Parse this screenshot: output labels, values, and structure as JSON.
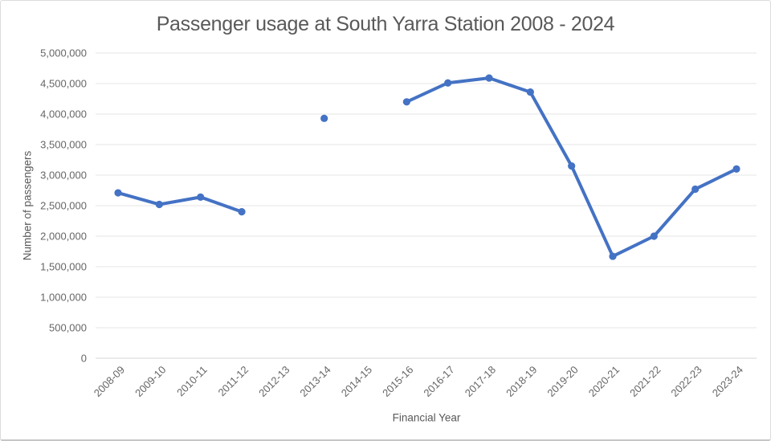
{
  "chart_data": {
    "type": "line",
    "title": "Passenger usage at South Yarra Station 2008 - 2024",
    "xlabel": "Financial Year",
    "ylabel": "Number of passengers",
    "categories": [
      "2008-09",
      "2009-10",
      "2010-11",
      "2011-12",
      "2012-13",
      "2013-14",
      "2014-15",
      "2015-16",
      "2016-17",
      "2017-18",
      "2018-19",
      "2019-20",
      "2020-21",
      "2021-22",
      "2022-23",
      "2023-24"
    ],
    "values": [
      2710000,
      2520000,
      2640000,
      2400000,
      null,
      3930000,
      null,
      4200000,
      4510000,
      4590000,
      4360000,
      3150000,
      1670000,
      2000000,
      2770000,
      3100000
    ],
    "ylim": [
      0,
      5000000
    ],
    "yticks": {
      "values": [
        0,
        500000,
        1000000,
        1500000,
        2000000,
        2500000,
        3000000,
        3500000,
        4000000,
        4500000,
        5000000
      ],
      "labels": [
        "0",
        "500,000",
        "1,000,000",
        "1,500,000",
        "2,000,000",
        "2,500,000",
        "3,000,000",
        "3,500,000",
        "4,000,000",
        "4,500,000",
        "5,000,000"
      ]
    },
    "grid": "horizontal",
    "legend": "none",
    "markers": true,
    "gaps_note": null,
    "colors": {
      "series": "#4472c4",
      "gridline": "#e6e6e6",
      "baseline": "#d4d4d4",
      "title_text": "#595959",
      "tick_text": "#666666"
    }
  }
}
